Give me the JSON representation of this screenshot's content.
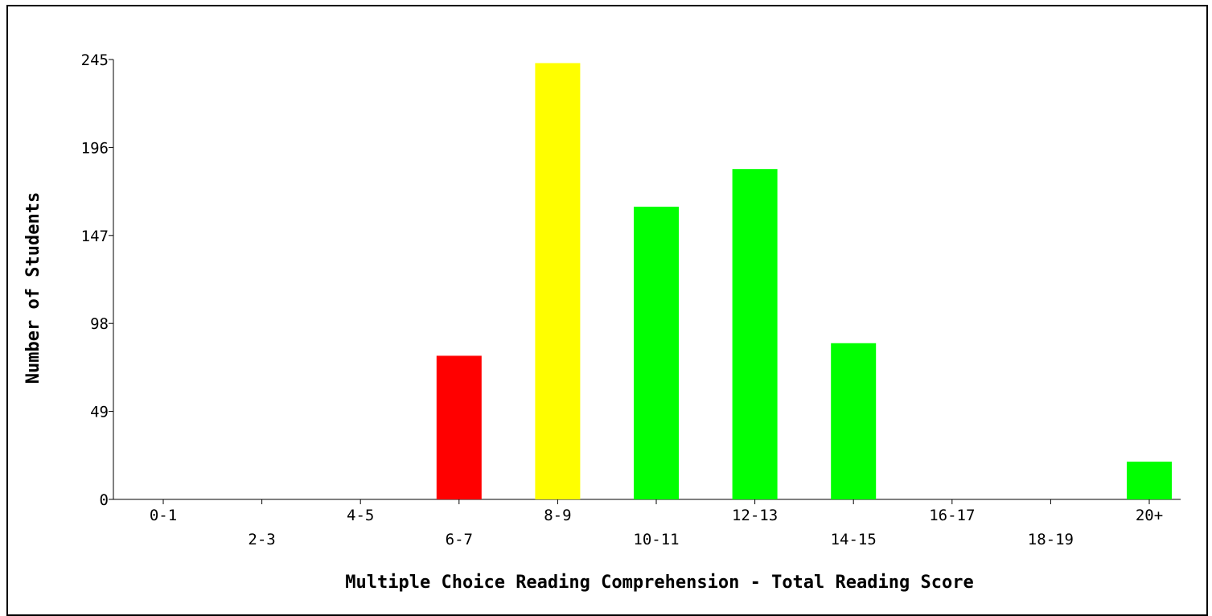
{
  "chart_data": {
    "type": "bar",
    "xlabel": "Multiple Choice Reading Comprehension - Total Reading Score",
    "ylabel": "Number of Students",
    "ylim": [
      0,
      245
    ],
    "yticks": [
      "0",
      "49",
      "98",
      "147",
      "196",
      "245"
    ],
    "categories": [
      "0-1",
      "2-3",
      "4-5",
      "6-7",
      "8-9",
      "10-11",
      "12-13",
      "14-15",
      "16-17",
      "18-19",
      "20+"
    ],
    "values": [
      0,
      0,
      0,
      80,
      243,
      163,
      184,
      87,
      0,
      0,
      21
    ],
    "bar_colors": [
      "#00ff00",
      "#00ff00",
      "#00ff00",
      "#ff0000",
      "#ffff00",
      "#00ff00",
      "#00ff00",
      "#00ff00",
      "#00ff00",
      "#00ff00",
      "#00ff00"
    ],
    "grid": false,
    "legend": "none"
  }
}
